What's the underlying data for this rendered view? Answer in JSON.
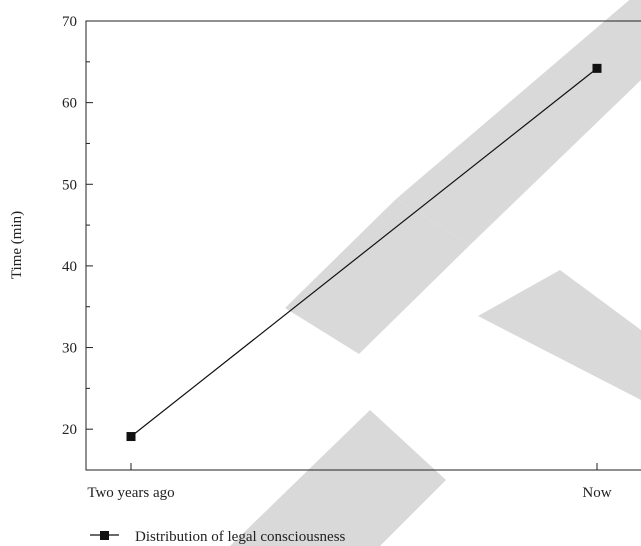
{
  "chart_data": {
    "type": "line",
    "title": "",
    "xlabel": "",
    "ylabel": "Time (min)",
    "categories": [
      "Two years ago",
      "Now"
    ],
    "series": [
      {
        "name": "Distribution of legal consciousness",
        "values": [
          19.1,
          64.2
        ],
        "marker": "square",
        "color": "#111111"
      }
    ],
    "ylim": [
      15,
      70
    ],
    "yticks": [
      20,
      30,
      40,
      50,
      60,
      70
    ],
    "grid": false,
    "legend_position": "bottom-left"
  },
  "watermark": {
    "text": "RETRACTED",
    "color": "#d9d9d9"
  }
}
